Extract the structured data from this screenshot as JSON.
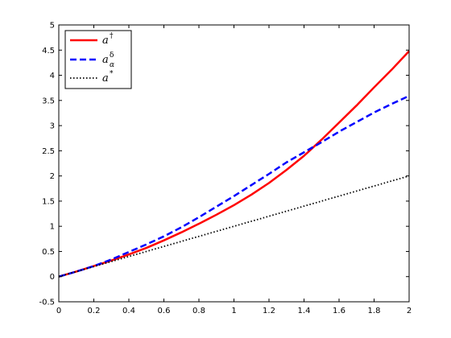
{
  "chart_data": {
    "type": "line",
    "title": "",
    "xlabel": "",
    "ylabel": "",
    "xlim": [
      0,
      2
    ],
    "ylim": [
      -0.5,
      5
    ],
    "x_ticks": [
      0,
      0.2,
      0.4,
      0.6,
      0.8,
      1,
      1.2,
      1.4,
      1.6,
      1.8,
      2
    ],
    "x_tick_labels": [
      "0",
      "0.2",
      "0.4",
      "0.6",
      "0.8",
      "1",
      "1.2",
      "1.4",
      "1.6",
      "1.8",
      "2"
    ],
    "y_ticks": [
      -0.5,
      0,
      0.5,
      1,
      1.5,
      2,
      2.5,
      3,
      3.5,
      4,
      4.5,
      5
    ],
    "y_tick_labels": [
      "-0.5",
      "0",
      "0.5",
      "1",
      "1.5",
      "2",
      "2.5",
      "3",
      "3.5",
      "4",
      "4.5",
      "5"
    ],
    "grid": false,
    "legend_position": "top-left",
    "series": [
      {
        "name": "a†",
        "legend_base": "a",
        "legend_sup": "†",
        "legend_sub": "",
        "color": "#ff0000",
        "style": "solid",
        "x": [
          0,
          0.1,
          0.2,
          0.3,
          0.4,
          0.5,
          0.6,
          0.7,
          0.8,
          0.9,
          1.0,
          1.1,
          1.2,
          1.3,
          1.4,
          1.5,
          1.6,
          1.7,
          1.8,
          1.9,
          2.0
        ],
        "y": [
          0,
          0.1,
          0.21,
          0.32,
          0.44,
          0.57,
          0.72,
          0.88,
          1.05,
          1.23,
          1.42,
          1.63,
          1.86,
          2.12,
          2.4,
          2.72,
          3.06,
          3.4,
          3.76,
          4.11,
          4.48
        ]
      },
      {
        "name": "aαδ",
        "legend_base": "a",
        "legend_sup": "δ",
        "legend_sub": "α",
        "color": "#0000ff",
        "style": "dashed",
        "x": [
          0,
          0.1,
          0.2,
          0.3,
          0.4,
          0.5,
          0.6,
          0.7,
          0.8,
          0.9,
          1.0,
          1.1,
          1.2,
          1.3,
          1.4,
          1.5,
          1.6,
          1.7,
          1.8,
          1.9,
          2.0
        ],
        "y": [
          0,
          0.1,
          0.21,
          0.34,
          0.49,
          0.64,
          0.8,
          0.98,
          1.18,
          1.39,
          1.6,
          1.82,
          2.04,
          2.27,
          2.47,
          2.67,
          2.88,
          3.07,
          3.26,
          3.43,
          3.59
        ]
      },
      {
        "name": "a*",
        "legend_base": "a",
        "legend_sup": "*",
        "legend_sub": "",
        "color": "#000000",
        "style": "dotted",
        "x": [
          0,
          0.2,
          0.4,
          0.6,
          0.8,
          1.0,
          1.2,
          1.4,
          1.6,
          1.8,
          2.0
        ],
        "y": [
          0,
          0.2,
          0.4,
          0.6,
          0.8,
          1.0,
          1.2,
          1.4,
          1.6,
          1.8,
          2.0
        ]
      }
    ]
  }
}
